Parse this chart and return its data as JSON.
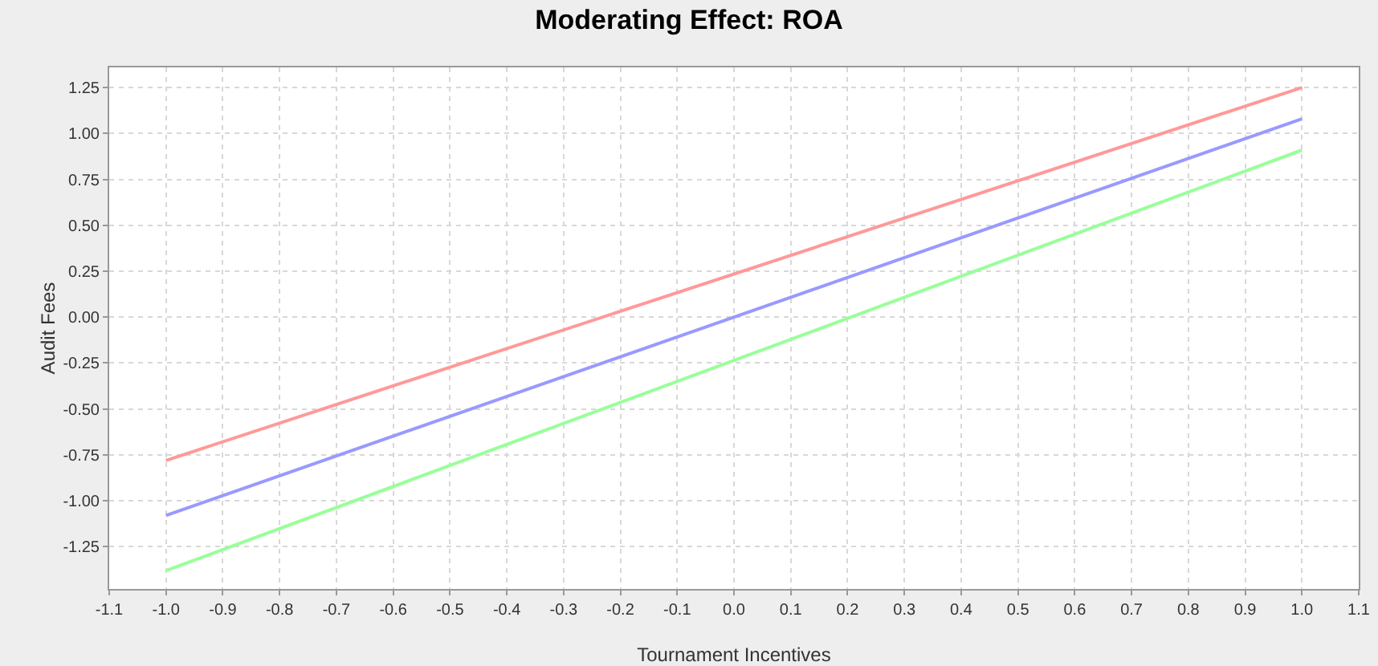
{
  "chart_data": {
    "type": "line",
    "title": "Moderating Effect: ROA",
    "xlabel": "Tournament Incentives",
    "ylabel": "Audit Fees",
    "x": [
      -1.0,
      1.0
    ],
    "series": [
      {
        "color": "#ff9999",
        "values": [
          -0.78,
          1.25
        ]
      },
      {
        "color": "#9999ff",
        "values": [
          -1.08,
          1.08
        ]
      },
      {
        "color": "#99ff99",
        "values": [
          -1.38,
          0.91
        ]
      }
    ],
    "xlim": [
      -1.1,
      1.1
    ],
    "ylim": [
      -1.48,
      1.36
    ],
    "xticks": [
      {
        "value": -1.1,
        "label": "-1.1"
      },
      {
        "value": -1.0,
        "label": "-1.0"
      },
      {
        "value": -0.9,
        "label": "-0.9"
      },
      {
        "value": -0.8,
        "label": "-0.8"
      },
      {
        "value": -0.7,
        "label": "-0.7"
      },
      {
        "value": -0.6,
        "label": "-0.6"
      },
      {
        "value": -0.5,
        "label": "-0.5"
      },
      {
        "value": -0.4,
        "label": "-0.4"
      },
      {
        "value": -0.3,
        "label": "-0.3"
      },
      {
        "value": -0.2,
        "label": "-0.2"
      },
      {
        "value": -0.1,
        "label": "-0.1"
      },
      {
        "value": 0,
        "label": "0.0"
      },
      {
        "value": 0.1,
        "label": "0.1"
      },
      {
        "value": 0.2,
        "label": "0.2"
      },
      {
        "value": 0.3,
        "label": "0.3"
      },
      {
        "value": 0.4,
        "label": "0.4"
      },
      {
        "value": 0.5,
        "label": "0.5"
      },
      {
        "value": 0.6,
        "label": "0.6"
      },
      {
        "value": 0.7,
        "label": "0.7"
      },
      {
        "value": 0.8,
        "label": "0.8"
      },
      {
        "value": 0.9,
        "label": "0.9"
      },
      {
        "value": 1.0,
        "label": "1.0"
      },
      {
        "value": 1.1,
        "label": "1.1"
      }
    ],
    "yticks": [
      {
        "value": 1.25,
        "label": "1.25"
      },
      {
        "value": 1.0,
        "label": "1.00"
      },
      {
        "value": 0.75,
        "label": "0.75"
      },
      {
        "value": 0.5,
        "label": "0.50"
      },
      {
        "value": 0.25,
        "label": "0.25"
      },
      {
        "value": 0,
        "label": "0.00"
      },
      {
        "value": -0.25,
        "label": "-0.25"
      },
      {
        "value": -0.5,
        "label": "-0.50"
      },
      {
        "value": -0.75,
        "label": "-0.75"
      },
      {
        "value": -1.0,
        "label": "-1.00"
      },
      {
        "value": -1.25,
        "label": "-1.25"
      }
    ],
    "grid": true,
    "marker": "none",
    "line_style": "solid"
  }
}
